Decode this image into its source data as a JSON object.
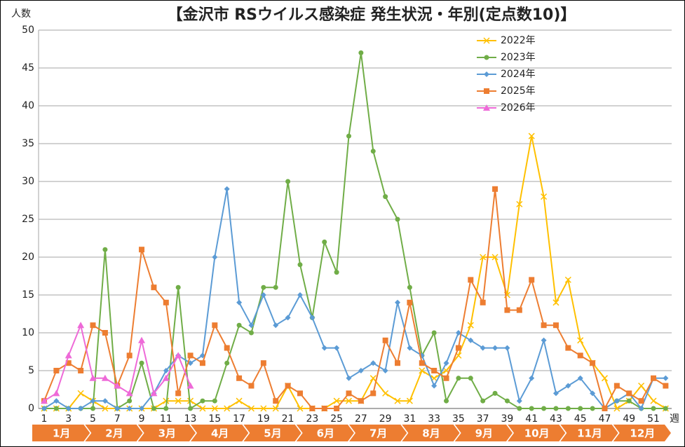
{
  "chart_data": {
    "type": "line",
    "title": "【金沢市  RSウイルス感染症  発生状況・年別(定点数10)】",
    "y_label": "人数",
    "x_label": "週",
    "categories": [
      "1",
      null,
      "3",
      null,
      "5",
      null,
      "7",
      null,
      "9",
      null,
      "11",
      null,
      "13",
      null,
      "15",
      null,
      "17",
      null,
      "19",
      null,
      "21",
      null,
      "23",
      null,
      "25",
      null,
      "27",
      null,
      "29",
      null,
      "31",
      null,
      "33",
      null,
      "35",
      null,
      "37",
      null,
      "39",
      null,
      "41",
      null,
      "43",
      null,
      "45",
      null,
      "47",
      null,
      "49",
      null,
      "51",
      null
    ],
    "months": [
      "1月",
      "2月",
      "3月",
      "4月",
      "5月",
      "6月",
      "7月",
      "8月",
      "9月",
      "10月",
      "11月",
      "12月"
    ],
    "month_color": "#ed7d31",
    "ylim": [
      0,
      50
    ],
    "yticks": [
      0,
      5,
      10,
      15,
      20,
      25,
      30,
      35,
      40,
      45,
      50
    ],
    "grid": true,
    "legend": "upper right",
    "series": [
      {
        "name": "2022年",
        "color": "#ffc000",
        "marker": "x",
        "values": [
          0,
          0,
          0,
          2,
          1,
          0,
          0,
          0,
          0,
          0,
          1,
          1,
          1,
          0,
          0,
          0,
          1,
          0,
          0,
          0,
          3,
          0,
          0,
          0,
          1,
          1,
          1,
          4,
          2,
          1,
          1,
          5,
          4,
          5,
          7,
          11,
          20,
          20,
          15,
          27,
          36,
          28,
          14,
          17,
          9,
          6,
          4,
          0,
          1,
          3,
          1,
          0
        ]
      },
      {
        "name": "2023年",
        "color": "#70ad47",
        "marker": "circle",
        "values": [
          0,
          0,
          0,
          0,
          0,
          21,
          0,
          1,
          6,
          0,
          0,
          16,
          0,
          1,
          1,
          6,
          11,
          10,
          16,
          16,
          30,
          19,
          12,
          22,
          18,
          36,
          47,
          34,
          28,
          25,
          16,
          7,
          10,
          1,
          4,
          4,
          1,
          2,
          1,
          0,
          0,
          0,
          0,
          0,
          0,
          0,
          0,
          1,
          1,
          0,
          0,
          0
        ]
      },
      {
        "name": "2024年",
        "color": "#5b9bd5",
        "marker": "diamond",
        "values": [
          0,
          1,
          0,
          0,
          1,
          1,
          0,
          0,
          0,
          2,
          5,
          7,
          6,
          7,
          20,
          29,
          14,
          11,
          15,
          11,
          12,
          15,
          12,
          8,
          8,
          4,
          5,
          6,
          5,
          14,
          8,
          7,
          3,
          6,
          10,
          9,
          8,
          8,
          8,
          1,
          4,
          9,
          2,
          3,
          4,
          2,
          0,
          1,
          2,
          0,
          4,
          4
        ]
      },
      {
        "name": "2025年",
        "color": "#ed7d31",
        "marker": "square",
        "values": [
          1,
          5,
          6,
          5,
          11,
          10,
          3,
          7,
          21,
          16,
          14,
          2,
          7,
          6,
          11,
          8,
          4,
          3,
          6,
          1,
          3,
          2,
          0,
          0,
          0,
          2,
          1,
          2,
          9,
          6,
          14,
          6,
          5,
          4,
          8,
          17,
          14,
          29,
          13,
          13,
          17,
          11,
          11,
          8,
          7,
          6,
          0,
          3,
          2,
          1,
          4,
          3
        ]
      },
      {
        "name": "2026年",
        "color": "#ee6ad8",
        "marker": "triangle",
        "values": [
          1,
          2,
          7,
          11,
          4,
          4,
          3,
          2,
          9,
          2,
          4,
          7,
          3,
          null,
          null,
          null,
          null,
          null,
          null,
          null,
          null,
          null,
          null,
          null,
          null,
          null,
          null,
          null,
          null,
          null,
          null,
          null,
          null,
          null,
          null,
          null,
          null,
          null,
          null,
          null,
          null,
          null,
          null,
          null,
          null,
          null,
          null,
          null,
          null,
          null,
          null,
          null
        ]
      }
    ]
  }
}
